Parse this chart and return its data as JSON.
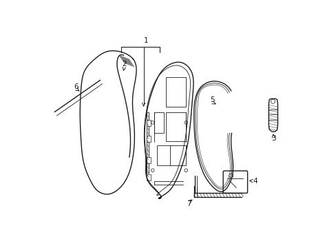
{
  "background_color": "#ffffff",
  "line_color": "#1a1a1a",
  "figsize": [
    4.89,
    3.6
  ],
  "dpi": 100,
  "lw_main": 1.0,
  "lw_thin": 0.6,
  "lw_detail": 0.5,
  "fontsize": 7.5
}
